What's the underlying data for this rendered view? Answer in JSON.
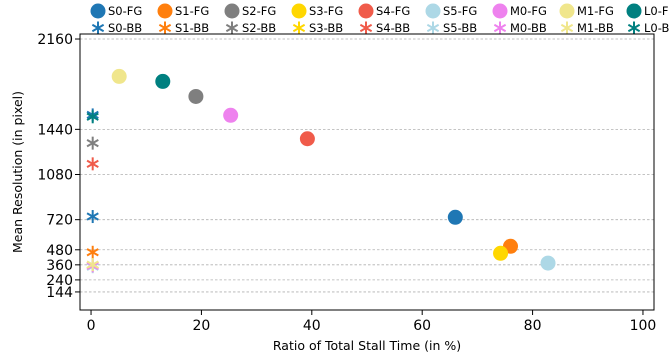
{
  "chart_data": {
    "type": "scatter",
    "xlabel": "Ratio of Total Stall Time (in %)",
    "ylabel": "Mean Resolution (in pixel)",
    "xlim": [
      -2,
      102
    ],
    "ylim": [
      0,
      2200
    ],
    "xticks": [
      0,
      20,
      40,
      60,
      80,
      100
    ],
    "yticks": [
      144,
      240,
      360,
      480,
      720,
      1080,
      1440,
      2160
    ],
    "grid": "horizontal dashed",
    "legend_placement": "top, above plot",
    "series": [
      {
        "name": "S0-FG",
        "marker": "circle",
        "color": "#1f77b4",
        "points": [
          [
            66,
            739
          ]
        ]
      },
      {
        "name": "S0-BB",
        "marker": "asterisk",
        "color": "#1f77b4",
        "points": [
          [
            0.3,
            1555
          ],
          [
            0.3,
            745
          ]
        ]
      },
      {
        "name": "S1-FG",
        "marker": "circle",
        "color": "#ff7f0e",
        "points": [
          [
            76,
            508
          ]
        ]
      },
      {
        "name": "S1-BB",
        "marker": "asterisk",
        "color": "#ff7f0e",
        "points": [
          [
            0.3,
            460
          ]
        ]
      },
      {
        "name": "S2-FG",
        "marker": "circle",
        "color": "#7f7f7f",
        "points": [
          [
            19,
            1702
          ]
        ]
      },
      {
        "name": "S2-BB",
        "marker": "asterisk",
        "color": "#7f7f7f",
        "points": [
          [
            0.3,
            1330
          ]
        ]
      },
      {
        "name": "S3-FG",
        "marker": "circle",
        "color": "#ffd700",
        "points": [
          [
            74.2,
            452
          ]
        ]
      },
      {
        "name": "S3-BB",
        "marker": "asterisk",
        "color": "#ffd700",
        "points": [
          [
            0.3,
            358
          ]
        ]
      },
      {
        "name": "S4-FG",
        "marker": "circle",
        "color": "#f05b4a",
        "points": [
          [
            39.2,
            1365
          ]
        ]
      },
      {
        "name": "S4-BB",
        "marker": "asterisk",
        "color": "#f05b4a",
        "points": [
          [
            0.3,
            1165
          ]
        ]
      },
      {
        "name": "S5-FG",
        "marker": "circle",
        "color": "#add8e6",
        "points": [
          [
            82.8,
            374
          ]
        ]
      },
      {
        "name": "S5-BB",
        "marker": "asterisk",
        "color": "#add8e6",
        "points": [
          [
            0.3,
            345
          ]
        ]
      },
      {
        "name": "M0-FG",
        "marker": "circle",
        "color": "#ee82ee",
        "points": [
          [
            25.3,
            1552
          ]
        ]
      },
      {
        "name": "M0-BB",
        "marker": "asterisk",
        "color": "#ee82ee",
        "points": [
          [
            0.3,
            352
          ]
        ]
      },
      {
        "name": "M1-FG",
        "marker": "circle",
        "color": "#f0e68c",
        "points": [
          [
            5.1,
            1862
          ]
        ]
      },
      {
        "name": "M1-BB",
        "marker": "asterisk",
        "color": "#f0e68c",
        "points": [
          [
            0.3,
            362
          ]
        ]
      },
      {
        "name": "L0-FG",
        "marker": "circle",
        "color": "#008080",
        "points": [
          [
            13,
            1822
          ]
        ]
      },
      {
        "name": "L0-BB",
        "marker": "asterisk",
        "color": "#008080",
        "points": [
          [
            0.3,
            1540
          ]
        ]
      }
    ],
    "legend_rows": [
      [
        "S0-FG",
        "S1-FG",
        "S2-FG",
        "S3-FG",
        "S4-FG",
        "S5-FG",
        "M0-FG",
        "M1-FG",
        "L0-FG"
      ],
      [
        "S0-BB",
        "S1-BB",
        "S2-BB",
        "S3-BB",
        "S4-BB",
        "S5-BB",
        "M0-BB",
        "M1-BB",
        "L0-BB"
      ]
    ]
  }
}
